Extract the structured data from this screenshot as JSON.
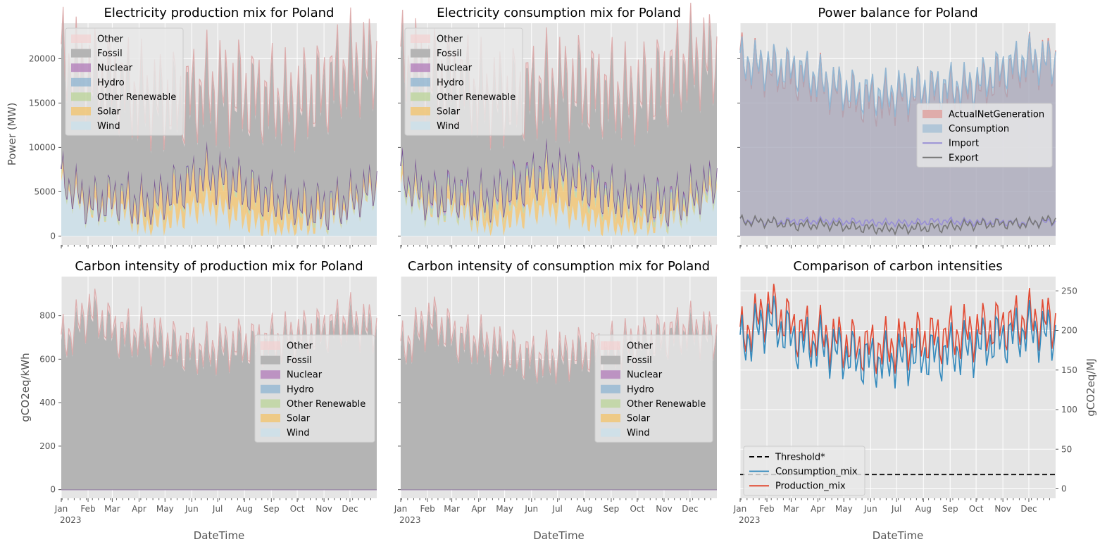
{
  "colors": {
    "Other": "#f4cfcf",
    "Fossil": "#b4b4b4",
    "Nuclear": "#b07ab8",
    "Hydro": "#92b6d2",
    "Other Renewable": "#bdd49c",
    "Solar": "#f1c778",
    "Wind": "#cfe0e8",
    "ActualNetGeneration": "#e08a86",
    "Consumption": "#92b6d2",
    "Import": "#988ed5",
    "Export": "#777777",
    "Production_mix": "#e24a33",
    "Consumption_mix": "#348abd",
    "Threshold": "#000000",
    "other_edge": "#d9a3a3",
    "nuclear_line": "#6b3f8a"
  },
  "month_ticks": [
    "Jan",
    "Feb",
    "Mar",
    "Apr",
    "May",
    "Jun",
    "Jul",
    "Aug",
    "Sep",
    "Oct",
    "Nov",
    "Dec"
  ],
  "year_label": "2023",
  "chart_data": [
    {
      "id": "production_mix",
      "type": "area",
      "title": "Electricity production mix for Poland",
      "ylabel": "Power (MW)",
      "xlabel": "",
      "ylim": [
        -1000,
        24000
      ],
      "yticks": [
        0,
        5000,
        10000,
        15000,
        20000
      ],
      "stack_order": [
        "Wind",
        "Solar",
        "Other Renewable",
        "Hydro",
        "Nuclear",
        "Fossil",
        "Other"
      ],
      "legend": [
        "Other",
        "Fossil",
        "Nuclear",
        "Hydro",
        "Other Renewable",
        "Solar",
        "Wind"
      ],
      "legend_position": "upper left",
      "series": [
        {
          "name": "Wind",
          "values": [
            5500,
            2500,
            3000,
            1000,
            2000,
            3500,
            2500,
            1200,
            800,
            1500,
            2800,
            5000
          ],
          "osc": [
            1500,
            700
          ]
        },
        {
          "name": "Solar",
          "values": [
            200,
            500,
            900,
            1800,
            2600,
            3000,
            3000,
            2700,
            2000,
            1100,
            500,
            200
          ],
          "osc": [
            800,
            400
          ]
        },
        {
          "name": "Other Renewable",
          "values": [
            600,
            600,
            600,
            600,
            600,
            600,
            600,
            600,
            600,
            600,
            600,
            600
          ],
          "osc": [
            100,
            50
          ]
        },
        {
          "name": "Hydro",
          "values": [
            150,
            150,
            150,
            150,
            150,
            150,
            150,
            150,
            150,
            150,
            150,
            150
          ],
          "osc": [
            30,
            20
          ]
        },
        {
          "name": "Nuclear",
          "values": [
            0,
            0,
            0,
            0,
            0,
            0,
            0,
            0,
            0,
            0,
            0,
            0
          ],
          "osc": [
            0,
            0
          ]
        },
        {
          "name": "Fossil",
          "values": [
            12500,
            13500,
            12000,
            11200,
            9300,
            8800,
            9700,
            10500,
            10800,
            12600,
            14500,
            13000
          ],
          "osc": [
            2000,
            1000
          ]
        },
        {
          "name": "Other",
          "values": [
            500,
            500,
            500,
            500,
            500,
            500,
            500,
            500,
            500,
            500,
            500,
            500
          ],
          "osc": [
            150,
            100
          ]
        }
      ]
    },
    {
      "id": "consumption_mix",
      "type": "area",
      "title": "Electricity consumption mix for Poland",
      "ylabel": "",
      "xlabel": "",
      "ylim": [
        -1000,
        24000
      ],
      "yticks": [
        0,
        5000,
        10000,
        15000,
        20000
      ],
      "stack_order": [
        "Wind",
        "Solar",
        "Other Renewable",
        "Hydro",
        "Nuclear",
        "Fossil",
        "Other"
      ],
      "legend": [
        "Other",
        "Fossil",
        "Nuclear",
        "Hydro",
        "Other Renewable",
        "Solar",
        "Wind"
      ],
      "legend_position": "upper left",
      "series": [
        {
          "name": "Wind",
          "values": [
            5200,
            2500,
            2900,
            1000,
            2000,
            3300,
            2500,
            1300,
            900,
            1500,
            2700,
            4800
          ],
          "osc": [
            1400,
            700
          ]
        },
        {
          "name": "Solar",
          "values": [
            200,
            500,
            900,
            1700,
            2500,
            2900,
            2900,
            2600,
            1900,
            1100,
            500,
            200
          ],
          "osc": [
            800,
            400
          ]
        },
        {
          "name": "Other Renewable",
          "values": [
            700,
            700,
            700,
            700,
            700,
            700,
            700,
            700,
            700,
            700,
            700,
            700
          ],
          "osc": [
            120,
            60
          ]
        },
        {
          "name": "Hydro",
          "values": [
            300,
            300,
            300,
            300,
            300,
            300,
            300,
            300,
            300,
            300,
            300,
            300
          ],
          "osc": [
            60,
            40
          ]
        },
        {
          "name": "Nuclear",
          "values": [
            300,
            300,
            300,
            300,
            300,
            300,
            300,
            300,
            300,
            300,
            300,
            300
          ],
          "osc": [
            80,
            40
          ]
        },
        {
          "name": "Fossil",
          "values": [
            12000,
            13000,
            12000,
            11000,
            9400,
            8900,
            9800,
            10700,
            11000,
            12800,
            14700,
            13200
          ],
          "osc": [
            1900,
            900
          ]
        },
        {
          "name": "Other",
          "values": [
            500,
            500,
            500,
            500,
            500,
            500,
            500,
            500,
            500,
            500,
            500,
            500
          ],
          "osc": [
            150,
            100
          ]
        }
      ]
    },
    {
      "id": "power_balance",
      "type": "area",
      "title": "Power balance for Poland",
      "ylabel": "",
      "xlabel": "",
      "ylim": [
        -1000,
        24000
      ],
      "yticks": [
        0,
        5000,
        10000,
        15000,
        20000
      ],
      "legend": [
        "ActualNetGeneration",
        "Consumption",
        "Import",
        "Export"
      ],
      "legend_position": "center right",
      "series": [
        {
          "name": "ActualNetGeneration",
          "values": [
            19800,
            18800,
            18100,
            17200,
            15500,
            15100,
            16200,
            16300,
            16300,
            17900,
            19700,
            19800
          ],
          "osc": [
            2200,
            1200
          ]
        },
        {
          "name": "Consumption",
          "values": [
            19700,
            19200,
            18800,
            17300,
            16200,
            16000,
            16500,
            16800,
            16900,
            18600,
            20000,
            19700
          ],
          "osc": [
            2000,
            1000
          ]
        },
        {
          "name": "Import",
          "values": [
            1800,
            1600,
            1700,
            1700,
            1600,
            1500,
            1500,
            1700,
            1600,
            1600,
            1500,
            1600
          ],
          "osc": [
            300,
            200
          ]
        },
        {
          "name": "Export",
          "values": [
            1700,
            1600,
            1200,
            1300,
            1000,
            800,
            900,
            1000,
            1300,
            1400,
            1400,
            1900
          ],
          "osc": [
            400,
            300
          ]
        }
      ]
    },
    {
      "id": "ci_production",
      "type": "area",
      "title": "Carbon intensity of production mix for Poland",
      "ylabel": "gCO2eq/kWh",
      "xlabel": "DateTime",
      "ylim": [
        -40,
        980
      ],
      "yticks": [
        0,
        200,
        400,
        600,
        800
      ],
      "stack_order": [
        "Wind",
        "Solar",
        "Other Renewable",
        "Hydro",
        "Nuclear",
        "Fossil",
        "Other"
      ],
      "legend": [
        "Other",
        "Fossil",
        "Nuclear",
        "Hydro",
        "Other Renewable",
        "Solar",
        "Wind"
      ],
      "legend_position": "center right",
      "series": [
        {
          "name": "Wind",
          "values": [
            0,
            0,
            0,
            0,
            0,
            0,
            0,
            0,
            0,
            0,
            0,
            0
          ],
          "osc": [
            0,
            0
          ]
        },
        {
          "name": "Solar",
          "values": [
            0,
            0,
            0,
            0,
            0,
            0,
            0,
            0,
            0,
            0,
            0,
            0
          ],
          "osc": [
            0,
            0
          ]
        },
        {
          "name": "Other Renewable",
          "values": [
            0,
            0,
            0,
            0,
            0,
            0,
            0,
            0,
            0,
            0,
            0,
            0
          ],
          "osc": [
            0,
            0
          ]
        },
        {
          "name": "Hydro",
          "values": [
            0,
            0,
            0,
            0,
            0,
            0,
            0,
            0,
            0,
            0,
            0,
            0
          ],
          "osc": [
            0,
            0
          ]
        },
        {
          "name": "Nuclear",
          "values": [
            0,
            0,
            0,
            0,
            0,
            0,
            0,
            0,
            0,
            0,
            0,
            0
          ],
          "osc": [
            0,
            0
          ]
        },
        {
          "name": "Fossil",
          "values": [
            650,
            810,
            700,
            690,
            640,
            620,
            650,
            660,
            680,
            710,
            760,
            720
          ],
          "osc": [
            80,
            40
          ]
        },
        {
          "name": "Other",
          "values": [
            20,
            20,
            20,
            20,
            20,
            20,
            20,
            20,
            20,
            20,
            20,
            20
          ],
          "osc": [
            10,
            5
          ]
        }
      ]
    },
    {
      "id": "ci_consumption",
      "type": "area",
      "title": "Carbon intensity of consumption mix for Poland",
      "ylabel": "",
      "xlabel": "DateTime",
      "ylim": [
        -40,
        980
      ],
      "yticks": [
        0,
        200,
        400,
        600,
        800
      ],
      "stack_order": [
        "Wind",
        "Solar",
        "Other Renewable",
        "Hydro",
        "Nuclear",
        "Fossil",
        "Other"
      ],
      "legend": [
        "Other",
        "Fossil",
        "Nuclear",
        "Hydro",
        "Other Renewable",
        "Solar",
        "Wind"
      ],
      "legend_position": "center right",
      "series": [
        {
          "name": "Wind",
          "values": [
            0,
            0,
            0,
            0,
            0,
            0,
            0,
            0,
            0,
            0,
            0,
            0
          ],
          "osc": [
            0,
            0
          ]
        },
        {
          "name": "Solar",
          "values": [
            0,
            0,
            0,
            0,
            0,
            0,
            0,
            0,
            0,
            0,
            0,
            0
          ],
          "osc": [
            0,
            0
          ]
        },
        {
          "name": "Other Renewable",
          "values": [
            0,
            0,
            0,
            0,
            0,
            0,
            0,
            0,
            0,
            0,
            0,
            0
          ],
          "osc": [
            0,
            0
          ]
        },
        {
          "name": "Hydro",
          "values": [
            0,
            0,
            0,
            0,
            0,
            0,
            0,
            0,
            0,
            0,
            0,
            0
          ],
          "osc": [
            0,
            0
          ]
        },
        {
          "name": "Nuclear",
          "values": [
            0,
            0,
            0,
            0,
            0,
            0,
            0,
            0,
            0,
            0,
            0,
            0
          ],
          "osc": [
            0,
            0
          ]
        },
        {
          "name": "Fossil",
          "values": [
            620,
            770,
            680,
            650,
            600,
            580,
            610,
            620,
            650,
            680,
            720,
            690
          ],
          "osc": [
            80,
            40
          ]
        },
        {
          "name": "Other",
          "values": [
            20,
            20,
            20,
            20,
            20,
            20,
            20,
            20,
            20,
            20,
            20,
            20
          ],
          "osc": [
            10,
            5
          ]
        }
      ]
    },
    {
      "id": "ci_comparison",
      "type": "line",
      "title": "Comparison of carbon intensities",
      "ylabel": "gCO2eq/MJ",
      "xlabel": "DateTime",
      "ylim": [
        -12,
        268
      ],
      "yticks": [
        0,
        50,
        100,
        150,
        200,
        250
      ],
      "y_axis_side": "right",
      "legend": [
        "Threshold*",
        "Consumption_mix",
        "Production_mix"
      ],
      "legend_position": "lower left",
      "series": [
        {
          "name": "Threshold*",
          "values": [
            18,
            18,
            18,
            18,
            18,
            18,
            18,
            18,
            18,
            18,
            18,
            18
          ],
          "osc": [
            0,
            0
          ]
        },
        {
          "name": "Consumption_mix",
          "values": [
            180,
            215,
            185,
            180,
            165,
            160,
            168,
            170,
            178,
            188,
            200,
            195
          ],
          "osc": [
            25,
            15
          ]
        },
        {
          "name": "Production_mix",
          "values": [
            190,
            230,
            200,
            192,
            180,
            178,
            188,
            192,
            198,
            205,
            215,
            210
          ],
          "osc": [
            25,
            15
          ]
        }
      ]
    }
  ]
}
